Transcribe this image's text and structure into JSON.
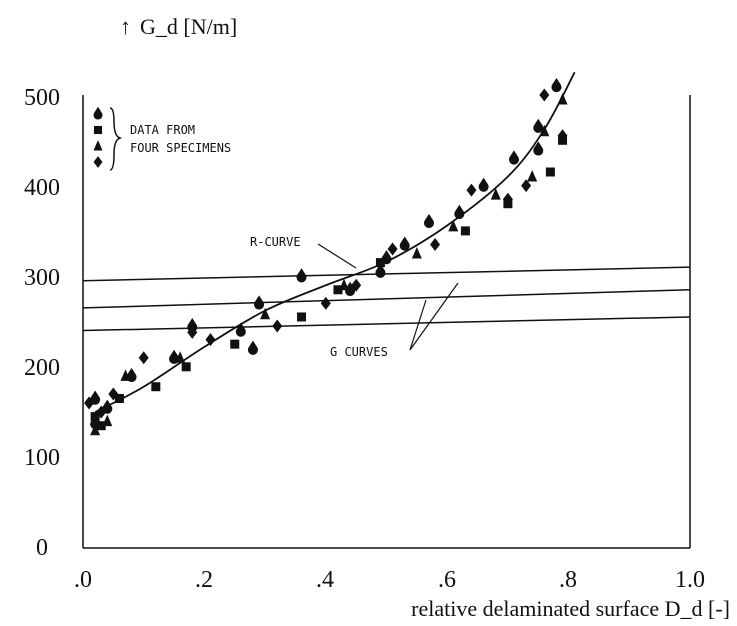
{
  "chart_data": {
    "type": "scatter",
    "ylabel": "G_d [N/m]",
    "xlabel": "relative delaminated surface D_d [-]",
    "xlim": [
      0.0,
      1.0
    ],
    "ylim": [
      0,
      500
    ],
    "xticks": [
      ".0",
      ".2",
      ".4",
      ".6",
      ".8",
      "1.0"
    ],
    "yticks": [
      "0",
      "100",
      "200",
      "300",
      "400",
      "500"
    ],
    "grid": false,
    "legend": {
      "placement": "top-left",
      "lines": [
        "DATA FROM",
        "FOUR SPECIMENS"
      ]
    },
    "series": [
      {
        "marker": "teardrop",
        "points": [
          [
            0.02,
            165
          ],
          [
            0.02,
            138
          ],
          [
            0.04,
            155
          ],
          [
            0.08,
            190
          ],
          [
            0.15,
            210
          ],
          [
            0.18,
            245
          ],
          [
            0.26,
            240
          ],
          [
            0.28,
            220
          ],
          [
            0.29,
            270
          ],
          [
            0.36,
            300
          ],
          [
            0.44,
            285
          ],
          [
            0.49,
            305
          ],
          [
            0.5,
            320
          ],
          [
            0.53,
            335
          ],
          [
            0.57,
            360
          ],
          [
            0.62,
            370
          ],
          [
            0.66,
            400
          ],
          [
            0.71,
            430
          ],
          [
            0.75,
            465
          ],
          [
            0.75,
            440
          ],
          [
            0.78,
            510
          ]
        ]
      },
      {
        "marker": "square",
        "points": [
          [
            0.02,
            145
          ],
          [
            0.03,
            135
          ],
          [
            0.06,
            165
          ],
          [
            0.12,
            178
          ],
          [
            0.17,
            200
          ],
          [
            0.25,
            225
          ],
          [
            0.36,
            255
          ],
          [
            0.42,
            285
          ],
          [
            0.49,
            315
          ],
          [
            0.63,
            350
          ],
          [
            0.7,
            380
          ],
          [
            0.77,
            415
          ],
          [
            0.79,
            450
          ]
        ]
      },
      {
        "marker": "triangle",
        "points": [
          [
            0.02,
            130
          ],
          [
            0.04,
            140
          ],
          [
            0.07,
            190
          ],
          [
            0.16,
            210
          ],
          [
            0.3,
            258
          ],
          [
            0.43,
            290
          ],
          [
            0.55,
            325
          ],
          [
            0.61,
            355
          ],
          [
            0.68,
            390
          ],
          [
            0.74,
            410
          ],
          [
            0.76,
            460
          ],
          [
            0.79,
            495
          ]
        ]
      },
      {
        "marker": "diamond",
        "points": [
          [
            0.01,
            160
          ],
          [
            0.03,
            150
          ],
          [
            0.05,
            170
          ],
          [
            0.1,
            210
          ],
          [
            0.18,
            238
          ],
          [
            0.21,
            230
          ],
          [
            0.32,
            245
          ],
          [
            0.4,
            270
          ],
          [
            0.45,
            290
          ],
          [
            0.51,
            330
          ],
          [
            0.58,
            335
          ],
          [
            0.64,
            395
          ],
          [
            0.7,
            385
          ],
          [
            0.73,
            400
          ],
          [
            0.76,
            500
          ],
          [
            0.79,
            455
          ]
        ]
      }
    ],
    "r_curve": {
      "label": "R-CURVE",
      "points": [
        [
          0.02,
          150
        ],
        [
          0.1,
          178
        ],
        [
          0.2,
          222
        ],
        [
          0.3,
          262
        ],
        [
          0.4,
          290
        ],
        [
          0.5,
          316
        ],
        [
          0.6,
          356
        ],
        [
          0.7,
          410
        ],
        [
          0.76,
          462
        ],
        [
          0.81,
          525
        ]
      ]
    },
    "g_curves": {
      "label": "G CURVES",
      "lines": [
        {
          "start": [
            0.0,
            295
          ],
          "end": [
            1.0,
            310
          ]
        },
        {
          "start": [
            0.0,
            265
          ],
          "end": [
            1.0,
            285
          ]
        },
        {
          "start": [
            0.0,
            240
          ],
          "end": [
            1.0,
            255
          ]
        }
      ]
    }
  }
}
